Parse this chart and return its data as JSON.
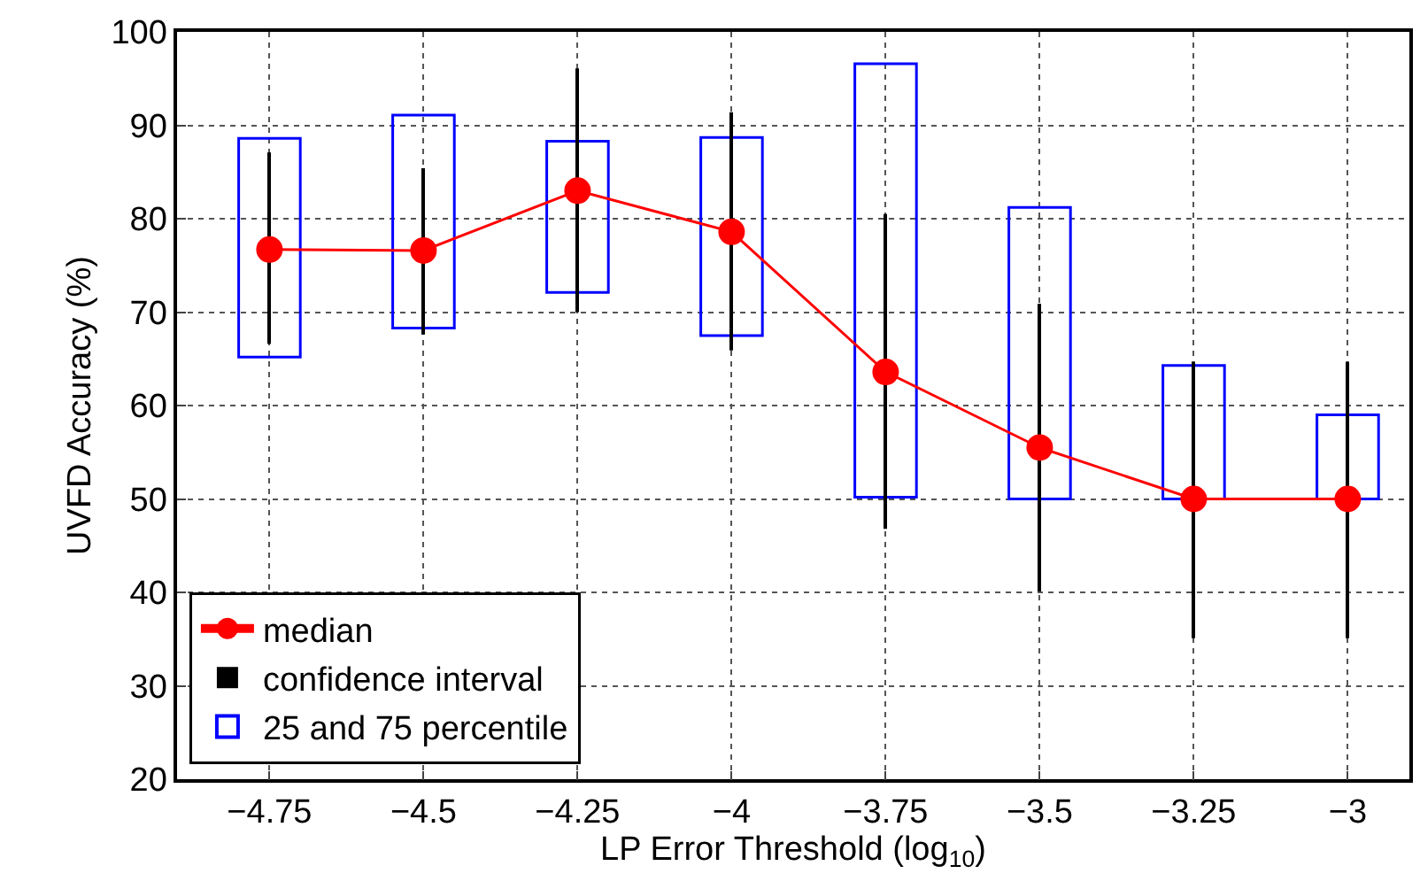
{
  "chart_data": {
    "type": "line",
    "xlabel": "LP Error Threshold (log$_{10}$)",
    "ylabel": "UVFD Accuracy (%)",
    "x": [
      -4.75,
      -4.5,
      -4.25,
      -4,
      -3.75,
      -3.5,
      -3.25,
      -3
    ],
    "series": [
      {
        "name": "25 and 75 percentile",
        "type": "bar",
        "color": "#0000ff",
        "base": [
          65.2,
          68.3,
          72.1,
          67.5,
          50.2,
          50,
          50,
          50
        ],
        "values": [
          23.4,
          22.8,
          16.2,
          21.2,
          46.4,
          31.2,
          14.3,
          9
        ]
      },
      {
        "name": "confidence interval",
        "type": "bar",
        "color": "#000000",
        "base": [
          66.6,
          67.6,
          70,
          65.9,
          46.8,
          40.1,
          35.1,
          35.1
        ],
        "values": [
          20.5,
          17.8,
          26.1,
          25.5,
          33.7,
          30.8,
          29.6,
          29.6
        ]
      },
      {
        "name": "median",
        "color": "#ff0000",
        "values": [
          76.7,
          76.6,
          83,
          78.6,
          63.6,
          55.5,
          50,
          50
        ]
      }
    ],
    "xlim": [
      -4.9,
      -2.9
    ],
    "xticks": [
      {
        "value": -4.75,
        "label": "−4.75"
      },
      {
        "value": -4.5,
        "label": "−4.5"
      },
      {
        "value": -4.25,
        "label": "−4.25"
      },
      {
        "value": -4,
        "label": "−4"
      },
      {
        "value": -3.75,
        "label": "−3.75"
      },
      {
        "value": -3.5,
        "label": "−3.5"
      },
      {
        "value": -3.25,
        "label": "−3.25"
      },
      {
        "value": -3,
        "label": "−3"
      }
    ],
    "ylim": [
      20,
      100
    ],
    "yticks": [
      20,
      30,
      40,
      50,
      60,
      70,
      80,
      90,
      100
    ],
    "grid": true,
    "legend": "bottom left",
    "marker": "circle"
  }
}
